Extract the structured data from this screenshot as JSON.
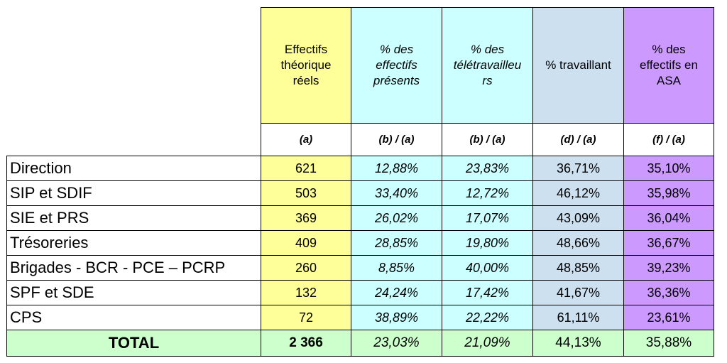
{
  "headers": [
    "Effectifs théorique réels",
    "% des effectifs présents",
    "% des télétravailleurs",
    "% travaillant",
    "% des effectifs en ASA"
  ],
  "header_lines": [
    [
      "Effectifs",
      "théorique",
      "réels"
    ],
    [
      "% des",
      "effectifs",
      "présents"
    ],
    [
      "% des",
      "télétravailleu",
      "rs"
    ],
    [
      "% travaillant"
    ],
    [
      "% des",
      "effectifs en",
      "ASA"
    ]
  ],
  "formulas": [
    "(a)",
    "(b) / (a)",
    "(b) / (a)",
    "(d) / (a)",
    "(f) / (a)"
  ],
  "rows": [
    {
      "label": "Direction",
      "values": [
        "621",
        "12,88%",
        "23,83%",
        "36,71%",
        "35,10%"
      ]
    },
    {
      "label": "SIP et SDIF",
      "values": [
        "503",
        "33,40%",
        "12,72%",
        "46,12%",
        "35,98%"
      ]
    },
    {
      "label": "SIE et PRS",
      "values": [
        "369",
        "26,02%",
        "17,07%",
        "43,09%",
        "36,04%"
      ]
    },
    {
      "label": "Trésoreries",
      "values": [
        "409",
        "28,85%",
        "19,80%",
        "48,66%",
        "36,67%"
      ]
    },
    {
      "label": "Brigades - BCR - PCE – PCRP",
      "values": [
        "260",
        "8,85%",
        "40,00%",
        "48,85%",
        "39,23%"
      ]
    },
    {
      "label": "SPF et SDE",
      "values": [
        "132",
        "24,24%",
        "17,42%",
        "41,67%",
        "36,36%"
      ]
    },
    {
      "label": "CPS",
      "values": [
        "72",
        "38,89%",
        "22,22%",
        "61,11%",
        "23,61%"
      ]
    }
  ],
  "total": {
    "label": "TOTAL",
    "values": [
      "2 366",
      "23,03%",
      "21,09%",
      "44,13%",
      "35,88%"
    ]
  },
  "colors": {
    "col_a": "#ffff99",
    "col_b": "#ccffff",
    "col_d": "#cce0f0",
    "col_f": "#cc99ff",
    "total_row": "#ccffcc"
  }
}
